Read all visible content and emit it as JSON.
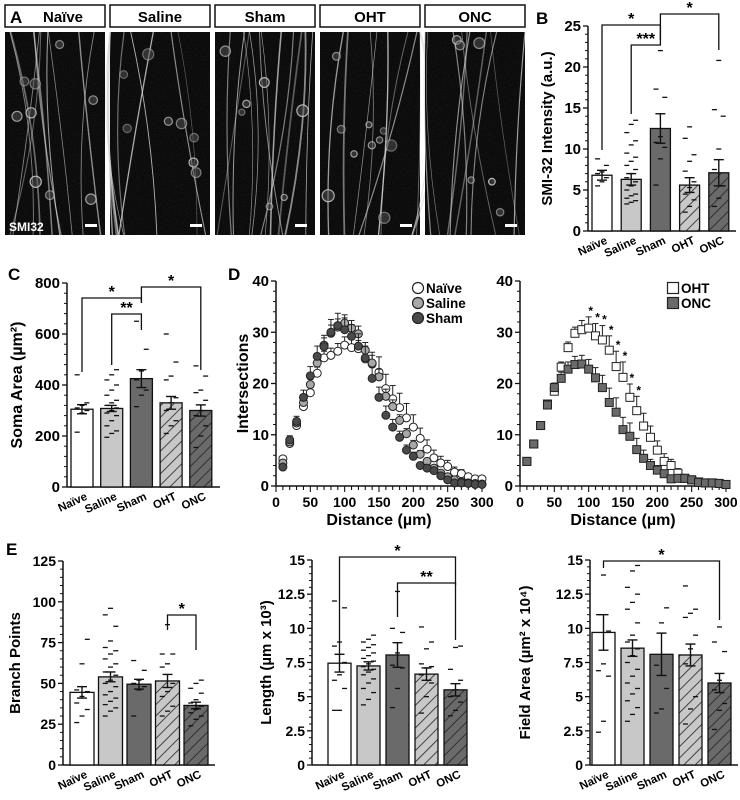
{
  "figure": {
    "panel_labels": [
      "A",
      "B",
      "C",
      "D",
      "E"
    ],
    "colors": {
      "naive": "#ffffff",
      "saline": "#c8c8c8",
      "sham": "#6a6a6a",
      "oht": "#c8c8c8",
      "onc": "#6a6a6a",
      "axis": "#111111"
    }
  },
  "panel_a": {
    "label": "A",
    "stain_label": "SMI32",
    "images": [
      {
        "title": "Naïve"
      },
      {
        "title": "Saline"
      },
      {
        "title": "Sham"
      },
      {
        "title": "OHT"
      },
      {
        "title": "ONC"
      }
    ]
  },
  "chart_data": [
    {
      "panel": "B",
      "type": "bar",
      "title": "",
      "ylabel": "SMI-32 Intensity (a.u.)",
      "xlabel": "",
      "categories": [
        "Naïve",
        "Saline",
        "Sham",
        "OHT",
        "ONC"
      ],
      "values": [
        6.8,
        6.3,
        12.5,
        5.6,
        7.1
      ],
      "sem": [
        0.6,
        0.7,
        1.8,
        0.9,
        1.6
      ],
      "ylim": [
        0,
        25
      ],
      "yticks": [
        0,
        5,
        10,
        15,
        20,
        25
      ],
      "points": [
        [
          5.5,
          6.0,
          6.5,
          7.0,
          7.2,
          8.0,
          8.8
        ],
        [
          3.3,
          3.5,
          3.7,
          4.0,
          4.3,
          4.5,
          5.0,
          5.5,
          6.0,
          6.5,
          7.0,
          7.5,
          8.0,
          8.5,
          9.0,
          9.5,
          10.5,
          11.0,
          12.0,
          13.0,
          13.5
        ],
        [
          5.6,
          8.8,
          10.2,
          10.8,
          11.5,
          16.3,
          17.3,
          22.0
        ],
        [
          2.3,
          3.0,
          3.8,
          4.5,
          5.3,
          6.0,
          7.3,
          8.5,
          9.3,
          11.3,
          12.7
        ],
        [
          3.0,
          4.0,
          5.5,
          7.5,
          10.0,
          14.0,
          14.8,
          20.8
        ]
      ],
      "significance": [
        {
          "from": "Naïve",
          "to": "Sham",
          "label": "*"
        },
        {
          "from": "Saline",
          "to": "Sham",
          "label": "***"
        },
        {
          "from": "Sham",
          "to": "ONC",
          "label": "*"
        }
      ]
    },
    {
      "panel": "C",
      "type": "bar",
      "title": "",
      "ylabel": "Soma Area (µm²)",
      "xlabel": "",
      "categories": [
        "Naïve",
        "Saline",
        "Sham",
        "OHT",
        "ONC"
      ],
      "values": [
        305,
        308,
        425,
        330,
        300
      ],
      "sem": [
        18,
        12,
        35,
        25,
        22
      ],
      "ylim": [
        0,
        800
      ],
      "yticks": [
        0,
        200,
        400,
        600,
        800
      ],
      "points": [
        [
          215,
          290,
          300,
          310,
          320,
          330,
          440
        ],
        [
          195,
          210,
          220,
          240,
          260,
          280,
          290,
          300,
          310,
          320,
          330,
          340,
          360,
          380,
          400,
          420,
          440,
          460
        ],
        [
          315,
          360,
          380,
          420,
          455,
          540,
          650
        ],
        [
          210,
          240,
          260,
          300,
          330,
          350,
          420,
          435,
          490,
          600
        ],
        [
          155,
          200,
          240,
          280,
          300,
          340,
          370,
          380,
          435,
          475
        ]
      ],
      "significance": [
        {
          "from": "Naïve",
          "to": "Sham",
          "label": "*"
        },
        {
          "from": "Saline",
          "to": "Sham",
          "label": "**"
        },
        {
          "from": "Sham",
          "to": "ONC",
          "label": "*"
        }
      ]
    },
    {
      "panel": "D-left",
      "type": "scatter",
      "title": "",
      "xlabel": "Distance (µm)",
      "ylabel": "Intersections",
      "xlim": [
        0,
        300
      ],
      "ylim": [
        0,
        40
      ],
      "xticks": [
        0,
        50,
        100,
        150,
        200,
        250,
        300
      ],
      "yticks": [
        0,
        10,
        20,
        30,
        40
      ],
      "legend_position": "upper right",
      "x": [
        10,
        20,
        30,
        40,
        50,
        60,
        70,
        80,
        90,
        100,
        110,
        120,
        130,
        140,
        150,
        160,
        170,
        180,
        190,
        200,
        210,
        220,
        230,
        240,
        250,
        260,
        270,
        280,
        290,
        300
      ],
      "series": [
        {
          "name": "Naïve",
          "marker": "circle-open",
          "values": [
            5.3,
            8.3,
            11.8,
            15.5,
            18.2,
            22.0,
            25.0,
            25.5,
            26.3,
            27.5,
            27.0,
            26.8,
            24.8,
            23.8,
            22.2,
            19.0,
            17.0,
            15.3,
            13.3,
            11.5,
            9.3,
            7.2,
            5.5,
            4.5,
            3.8,
            2.7,
            2.4,
            1.8,
            1.4,
            1.4
          ],
          "sem": [
            0.5,
            0.7,
            0.8,
            0.9,
            1.0,
            1.2,
            1.3,
            1.4,
            1.5,
            1.6,
            1.6,
            1.6,
            1.7,
            2.3,
            3.0,
            2.8,
            2.6,
            2.8,
            2.8,
            2.4,
            2.0,
            1.8,
            1.5,
            1.3,
            1.2,
            1.0,
            0.8,
            0.6,
            0.5,
            0.4
          ]
        },
        {
          "name": "Saline",
          "marker": "circle-gray",
          "values": [
            4.5,
            8.6,
            12.3,
            16.3,
            19.8,
            24.0,
            27.5,
            29.8,
            31.0,
            31.8,
            30.8,
            29.7,
            26.5,
            24.0,
            21.3,
            17.5,
            15.5,
            12.8,
            10.2,
            8.0,
            6.2,
            4.8,
            3.5,
            2.5,
            1.8,
            1.2,
            0.8,
            0.6,
            0.5,
            0.4
          ],
          "sem": [
            0.4,
            0.6,
            0.7,
            0.9,
            1.0,
            1.2,
            1.4,
            1.6,
            1.6,
            1.6,
            1.5,
            1.5,
            1.5,
            1.5,
            1.5,
            1.4,
            1.3,
            1.1,
            1.0,
            0.9,
            0.7,
            0.6,
            0.5,
            0.4,
            0.4,
            0.3,
            0.3,
            0.2,
            0.2,
            0.2
          ]
        },
        {
          "name": "Sham",
          "marker": "circle-dark",
          "values": [
            3.7,
            9.0,
            12.6,
            17.3,
            21.5,
            25.3,
            27.2,
            30.0,
            31.3,
            30.5,
            29.2,
            27.3,
            25.0,
            21.0,
            17.3,
            13.8,
            11.5,
            9.5,
            7.0,
            5.8,
            4.0,
            3.5,
            3.0,
            2.0,
            1.2,
            0.6,
            0.6,
            0.5,
            0.3,
            0.3
          ],
          "sem": [
            0.4,
            0.8,
            1.0,
            1.4,
            1.8,
            2.0,
            2.2,
            2.5,
            2.4,
            2.3,
            2.3,
            2.4,
            2.3,
            2.2,
            2.0,
            1.8,
            1.5,
            1.2,
            1.0,
            0.8,
            0.6,
            0.5,
            0.4,
            0.3,
            0.2,
            0.2,
            0.2,
            0.1,
            0.1,
            0.1
          ]
        }
      ]
    },
    {
      "panel": "D-right",
      "type": "scatter",
      "title": "",
      "xlabel": "Distance (µm)",
      "ylabel": "",
      "xlim": [
        0,
        300
      ],
      "ylim": [
        0,
        40
      ],
      "xticks": [
        0,
        50,
        100,
        150,
        200,
        250,
        300
      ],
      "yticks": [
        0,
        10,
        20,
        30,
        40
      ],
      "legend_position": "upper right",
      "x": [
        10,
        20,
        30,
        40,
        50,
        60,
        70,
        80,
        90,
        100,
        110,
        120,
        130,
        140,
        150,
        160,
        170,
        180,
        190,
        200,
        210,
        220,
        230,
        240,
        250,
        260,
        270,
        280,
        290,
        300
      ],
      "series": [
        {
          "name": "OHT",
          "marker": "square-open",
          "values": [
            4.8,
            8.2,
            11.8,
            16.0,
            18.5,
            23.2,
            27.0,
            29.8,
            30.5,
            30.8,
            29.3,
            28.5,
            26.5,
            23.3,
            21.2,
            17.3,
            14.7,
            11.7,
            9.5,
            7.0,
            4.8,
            4.0,
            2.5,
            1.5,
            1.2,
            0.8,
            0.6,
            0.6,
            0.5,
            0.3
          ],
          "sem": [
            0.4,
            0.5,
            0.6,
            0.7,
            0.9,
            1.0,
            1.1,
            1.2,
            1.8,
            2.2,
            2.4,
            2.8,
            2.8,
            3.0,
            3.0,
            2.6,
            2.8,
            2.5,
            2.2,
            1.8,
            1.5,
            1.2,
            0.9,
            0.6,
            0.4,
            0.3,
            0.2,
            0.2,
            0.2,
            0.1
          ],
          "significant_x": [
            100,
            110,
            120,
            130,
            140,
            150,
            160,
            170
          ]
        },
        {
          "name": "ONC",
          "marker": "square-dark",
          "values": [
            4.8,
            8.2,
            11.8,
            15.8,
            19.2,
            21.0,
            22.8,
            23.7,
            23.8,
            22.8,
            21.1,
            19.2,
            16.3,
            14.4,
            11.0,
            9.7,
            7.1,
            5.4,
            4.0,
            3.1,
            2.4,
            1.4,
            1.5,
            1.5,
            1.2,
            0.7,
            0.6,
            0.6,
            0.5,
            0.3
          ],
          "sem": [
            0.4,
            0.5,
            0.6,
            0.7,
            0.9,
            1.2,
            1.4,
            1.6,
            1.7,
            1.9,
            2.0,
            2.4,
            2.8,
            2.8,
            2.4,
            2.6,
            2.2,
            1.6,
            1.2,
            0.9,
            0.7,
            0.5,
            0.4,
            0.3,
            0.2,
            0.2,
            0.2,
            0.1,
            0.1,
            0.1
          ]
        }
      ]
    },
    {
      "panel": "E-1",
      "type": "bar",
      "title": "",
      "ylabel": "Branch Points",
      "xlabel": "",
      "categories": [
        "Naïve",
        "Saline",
        "Sham",
        "OHT",
        "ONC"
      ],
      "values": [
        44.5,
        54,
        49.5,
        51.5,
        36.5
      ],
      "sem": [
        3.5,
        3,
        3,
        4,
        2
      ],
      "ylim": [
        0,
        125
      ],
      "yticks": [
        0,
        25,
        50,
        75,
        100,
        125
      ],
      "points": [
        [
          26,
          30,
          34,
          38,
          42,
          45,
          46,
          62,
          77
        ],
        [
          30,
          33,
          35,
          37,
          39,
          41,
          43,
          45,
          48,
          50,
          52,
          55,
          57,
          60,
          62,
          65,
          68,
          70,
          72,
          76,
          85,
          92,
          96
        ],
        [
          30,
          46,
          48,
          50,
          52,
          58,
          64
        ],
        [
          30,
          33,
          36,
          42,
          45,
          50,
          60,
          62,
          68,
          68,
          86
        ],
        [
          24,
          28,
          30,
          32,
          34,
          36,
          38,
          40,
          44,
          47,
          50,
          52
        ]
      ],
      "significance": [
        {
          "from": "OHT",
          "to": "ONC",
          "label": "*"
        }
      ]
    },
    {
      "panel": "E-2",
      "type": "bar",
      "title": "",
      "ylabel": "Length (µm x 10³)",
      "xlabel": "",
      "categories": [
        "Naïve",
        "Saline",
        "Sham",
        "OHT",
        "ONC"
      ],
      "values": [
        7.45,
        7.25,
        8.05,
        6.65,
        5.5
      ],
      "sem": [
        0.65,
        0.3,
        0.9,
        0.45,
        0.45
      ],
      "ylim": [
        0,
        15
      ],
      "yticks": [
        0,
        2.5,
        5,
        7.5,
        10,
        12.5,
        15
      ],
      "points": [
        [
          4.0,
          4.0,
          5.6,
          6.2,
          6.6,
          7.5,
          8.7,
          9.0,
          11.5,
          12.0
        ],
        [
          4.4,
          4.8,
          5.3,
          5.6,
          6.0,
          6.3,
          6.6,
          6.8,
          7.0,
          7.2,
          7.4,
          7.6,
          7.8,
          8.0,
          8.2,
          8.4,
          8.6,
          8.8,
          9.0,
          9.2,
          9.5
        ],
        [
          4.2,
          5.6,
          7.1,
          7.3,
          8.2,
          9.7,
          10.0,
          12.7
        ],
        [
          3.8,
          5.0,
          6.0,
          6.6,
          7.1,
          7.2,
          7.4,
          8.5,
          9.0,
          10.1
        ],
        [
          3.6,
          4.0,
          4.6,
          5.0,
          5.5,
          6.2,
          7.0,
          8.6,
          8.7
        ]
      ],
      "significance": [
        {
          "from": "Naïve",
          "to": "ONC",
          "label": "*"
        },
        {
          "from": "Sham",
          "to": "ONC",
          "label": "**"
        }
      ]
    },
    {
      "panel": "E-3",
      "type": "bar",
      "title": "",
      "ylabel": "Field Area (µm² x 10⁴)",
      "xlabel": "",
      "categories": [
        "Naïve",
        "Saline",
        "Sham",
        "OHT",
        "ONC"
      ],
      "values": [
        9.7,
        8.55,
        8.1,
        8.05,
        6.0
      ],
      "sem": [
        1.3,
        0.6,
        1.55,
        0.8,
        0.7
      ],
      "ylim": [
        0,
        15
      ],
      "yticks": [
        0,
        2.5,
        5,
        7.5,
        10,
        12.5,
        15
      ],
      "points": [
        [
          2.4,
          3.2,
          6.5,
          6.9,
          7.4,
          9.8,
          11.0,
          13.9
        ],
        [
          3.2,
          3.7,
          4.2,
          4.7,
          5.2,
          5.6,
          6.0,
          6.5,
          7.0,
          7.5,
          8.0,
          8.5,
          9.0,
          9.5,
          10.4,
          11.4,
          11.9,
          12.5,
          13.0,
          14.2,
          14.6
        ],
        [
          3.8,
          4.1,
          5.6,
          7.3,
          10.4,
          11.5
        ],
        [
          3.0,
          4.1,
          5.0,
          7.4,
          8.5,
          9.5,
          10.8,
          11.1,
          11.4,
          13.1
        ],
        [
          2.6,
          4.0,
          4.5,
          5.5,
          6.2,
          8.3,
          9.0,
          10.1
        ]
      ],
      "significance": [
        {
          "from": "Naïve",
          "to": "ONC",
          "label": "*"
        }
      ]
    }
  ]
}
